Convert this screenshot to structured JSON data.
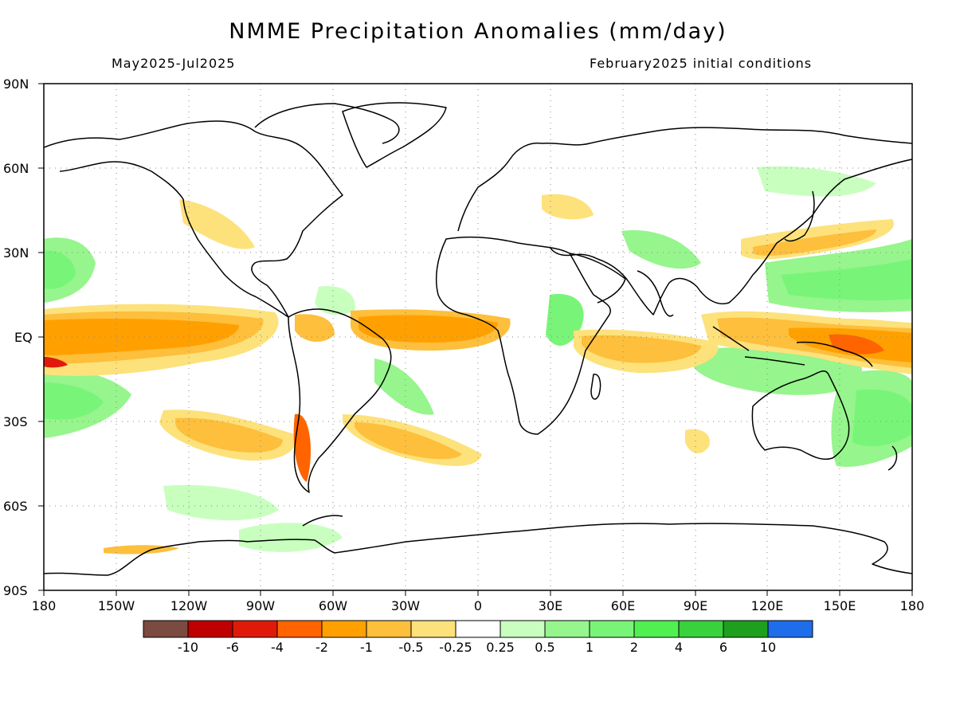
{
  "title": "NMME Precipitation Anomalies (mm/day)",
  "period": "May2025-Jul2025",
  "initial_conditions": "February2025 initial conditions",
  "lat_labels": [
    "90N",
    "60N",
    "30N",
    "EQ",
    "30S",
    "60S",
    "90S"
  ],
  "lon_labels": [
    "180",
    "150W",
    "120W",
    "90W",
    "60W",
    "30W",
    "0",
    "30E",
    "60E",
    "90E",
    "120E",
    "150E",
    "180"
  ],
  "colorbar": {
    "colors": [
      "#7b4b3f",
      "#c00000",
      "#e01a0a",
      "#ff6400",
      "#ffa000",
      "#fdbf3c",
      "#fde17b",
      "#ffffff",
      "#c8ffbe",
      "#96f58c",
      "#78f578",
      "#50f050",
      "#37d23c",
      "#1ea01e",
      "#1e6eeb"
    ],
    "labels": [
      "-10",
      "-6",
      "-4",
      "-2",
      "-1",
      "-0.5",
      "-0.25",
      "0.25",
      "0.5",
      "1",
      "2",
      "4",
      "6",
      "10"
    ]
  }
}
